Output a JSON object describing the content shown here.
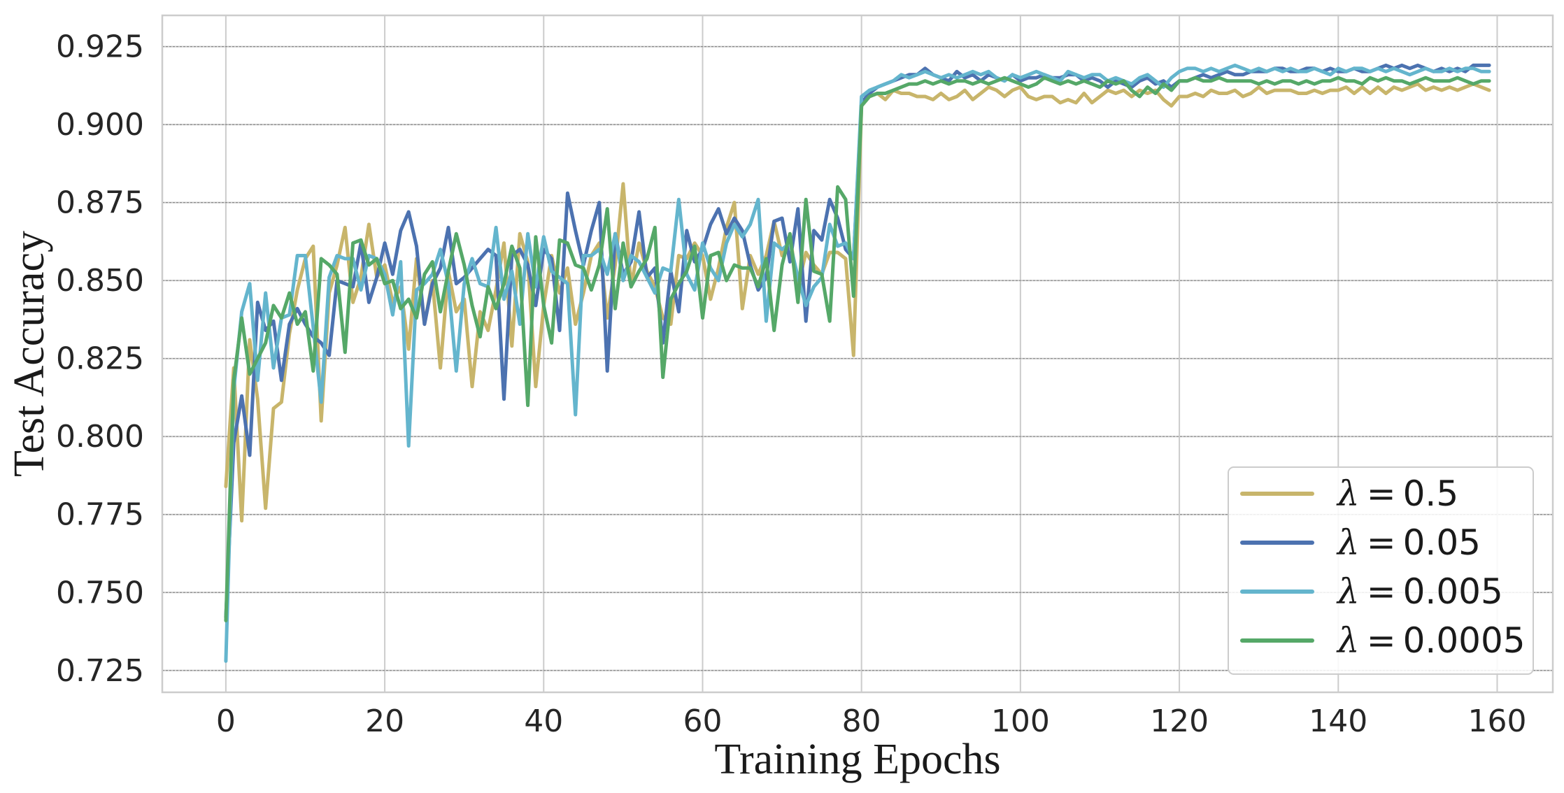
{
  "chart_data": {
    "type": "line",
    "xlabel": "Training Epochs",
    "ylabel": "Test Accuracy",
    "xlim": [
      -8,
      167
    ],
    "ylim": [
      0.718,
      0.935
    ],
    "xticks": [
      0,
      20,
      40,
      60,
      80,
      100,
      120,
      140,
      160
    ],
    "yticks": [
      0.725,
      0.75,
      0.775,
      0.8,
      0.825,
      0.85,
      0.875,
      0.9,
      0.925
    ],
    "ytick_labels": [
      "0.725",
      "0.750",
      "0.775",
      "0.800",
      "0.825",
      "0.850",
      "0.875",
      "0.900",
      "0.925"
    ],
    "grid": true,
    "legend_position": "lower-right",
    "legend_symbol": "λ",
    "legend_equals": "=",
    "series": [
      {
        "name": "λ = 0.5",
        "value_label": "0.5",
        "color": "#c8b56b",
        "values": [
          0.784,
          0.822,
          0.773,
          0.831,
          0.812,
          0.777,
          0.809,
          0.811,
          0.833,
          0.847,
          0.857,
          0.861,
          0.805,
          0.846,
          0.855,
          0.867,
          0.843,
          0.851,
          0.868,
          0.851,
          0.855,
          0.843,
          0.848,
          0.828,
          0.857,
          0.836,
          0.85,
          0.822,
          0.853,
          0.84,
          0.844,
          0.816,
          0.84,
          0.834,
          0.847,
          0.862,
          0.829,
          0.865,
          0.856,
          0.816,
          0.842,
          0.858,
          0.846,
          0.854,
          0.836,
          0.846,
          0.858,
          0.862,
          0.838,
          0.855,
          0.881,
          0.848,
          0.862,
          0.853,
          0.848,
          0.838,
          0.836,
          0.858,
          0.857,
          0.862,
          0.858,
          0.844,
          0.854,
          0.867,
          0.875,
          0.841,
          0.858,
          0.852,
          0.858,
          0.869,
          0.858,
          0.864,
          0.848,
          0.859,
          0.855,
          0.852,
          0.859,
          0.859,
          0.857,
          0.826,
          0.906,
          0.909,
          0.91,
          0.908,
          0.911,
          0.91,
          0.91,
          0.909,
          0.909,
          0.908,
          0.91,
          0.908,
          0.909,
          0.911,
          0.908,
          0.91,
          0.912,
          0.911,
          0.909,
          0.911,
          0.912,
          0.909,
          0.908,
          0.909,
          0.909,
          0.907,
          0.908,
          0.907,
          0.91,
          0.907,
          0.909,
          0.911,
          0.91,
          0.911,
          0.909,
          0.911,
          0.91,
          0.911,
          0.908,
          0.906,
          0.909,
          0.909,
          0.91,
          0.909,
          0.911,
          0.91,
          0.91,
          0.911,
          0.909,
          0.91,
          0.912,
          0.91,
          0.911,
          0.911,
          0.911,
          0.91,
          0.91,
          0.911,
          0.91,
          0.911,
          0.911,
          0.912,
          0.91,
          0.912,
          0.91,
          0.912,
          0.91,
          0.912,
          0.911,
          0.912,
          0.913,
          0.911,
          0.912,
          0.911,
          0.912,
          0.911,
          0.912,
          0.913,
          0.912,
          0.911
        ]
      },
      {
        "name": "λ = 0.05",
        "value_label": "0.05",
        "color": "#4c72b0",
        "values": [
          0.742,
          0.798,
          0.813,
          0.794,
          0.843,
          0.834,
          0.837,
          0.818,
          0.836,
          0.841,
          0.836,
          0.832,
          0.83,
          0.826,
          0.85,
          0.849,
          0.848,
          0.862,
          0.843,
          0.851,
          0.862,
          0.852,
          0.866,
          0.872,
          0.861,
          0.836,
          0.849,
          0.854,
          0.867,
          0.849,
          0.851,
          0.854,
          0.857,
          0.86,
          0.858,
          0.812,
          0.858,
          0.86,
          0.855,
          0.842,
          0.86,
          0.857,
          0.834,
          0.878,
          0.866,
          0.855,
          0.866,
          0.875,
          0.821,
          0.865,
          0.852,
          0.856,
          0.872,
          0.851,
          0.854,
          0.83,
          0.853,
          0.84,
          0.866,
          0.856,
          0.86,
          0.868,
          0.873,
          0.865,
          0.87,
          0.866,
          0.855,
          0.847,
          0.851,
          0.869,
          0.87,
          0.856,
          0.873,
          0.837,
          0.866,
          0.863,
          0.876,
          0.87,
          0.86,
          0.857,
          0.907,
          0.91,
          0.912,
          0.913,
          0.914,
          0.915,
          0.916,
          0.916,
          0.918,
          0.916,
          0.915,
          0.914,
          0.917,
          0.915,
          0.916,
          0.914,
          0.916,
          0.915,
          0.914,
          0.916,
          0.914,
          0.915,
          0.915,
          0.916,
          0.915,
          0.915,
          0.916,
          0.916,
          0.914,
          0.915,
          0.914,
          0.912,
          0.914,
          0.913,
          0.912,
          0.914,
          0.915,
          0.913,
          0.914,
          0.912,
          0.914,
          0.914,
          0.915,
          0.916,
          0.915,
          0.916,
          0.917,
          0.916,
          0.916,
          0.917,
          0.917,
          0.917,
          0.918,
          0.918,
          0.917,
          0.917,
          0.918,
          0.918,
          0.917,
          0.918,
          0.917,
          0.917,
          0.918,
          0.917,
          0.917,
          0.918,
          0.919,
          0.918,
          0.919,
          0.918,
          0.919,
          0.918,
          0.917,
          0.918,
          0.917,
          0.918,
          0.917,
          0.919,
          0.919,
          0.919
        ]
      },
      {
        "name": "λ = 0.005",
        "value_label": "0.005",
        "color": "#64b5cd",
        "values": [
          0.728,
          0.815,
          0.84,
          0.849,
          0.818,
          0.846,
          0.822,
          0.838,
          0.839,
          0.858,
          0.858,
          0.835,
          0.811,
          0.851,
          0.858,
          0.857,
          0.857,
          0.847,
          0.858,
          0.857,
          0.852,
          0.839,
          0.856,
          0.797,
          0.847,
          0.849,
          0.852,
          0.86,
          0.849,
          0.821,
          0.849,
          0.857,
          0.849,
          0.848,
          0.867,
          0.844,
          0.853,
          0.836,
          0.865,
          0.848,
          0.864,
          0.853,
          0.851,
          0.849,
          0.807,
          0.858,
          0.858,
          0.86,
          0.852,
          0.865,
          0.85,
          0.858,
          0.856,
          0.851,
          0.846,
          0.854,
          0.853,
          0.876,
          0.852,
          0.847,
          0.862,
          0.854,
          0.85,
          0.862,
          0.868,
          0.864,
          0.868,
          0.876,
          0.837,
          0.862,
          0.86,
          0.862,
          0.851,
          0.842,
          0.848,
          0.851,
          0.868,
          0.861,
          0.862,
          0.857,
          0.909,
          0.911,
          0.912,
          0.913,
          0.914,
          0.916,
          0.915,
          0.916,
          0.917,
          0.916,
          0.915,
          0.916,
          0.915,
          0.916,
          0.917,
          0.916,
          0.917,
          0.915,
          0.914,
          0.916,
          0.915,
          0.916,
          0.917,
          0.916,
          0.915,
          0.914,
          0.917,
          0.916,
          0.915,
          0.916,
          0.916,
          0.914,
          0.915,
          0.914,
          0.913,
          0.915,
          0.916,
          0.914,
          0.912,
          0.915,
          0.917,
          0.918,
          0.918,
          0.917,
          0.918,
          0.917,
          0.918,
          0.919,
          0.918,
          0.917,
          0.918,
          0.917,
          0.918,
          0.917,
          0.918,
          0.917,
          0.917,
          0.918,
          0.917,
          0.916,
          0.918,
          0.917,
          0.918,
          0.918,
          0.917,
          0.918,
          0.917,
          0.918,
          0.917,
          0.916,
          0.917,
          0.918,
          0.917,
          0.917,
          0.918,
          0.917,
          0.918,
          0.918,
          0.917,
          0.917
        ]
      },
      {
        "name": "λ = 0.0005",
        "value_label": "0.0005",
        "color": "#55a868",
        "values": [
          0.741,
          0.818,
          0.838,
          0.82,
          0.825,
          0.83,
          0.842,
          0.838,
          0.846,
          0.836,
          0.84,
          0.821,
          0.857,
          0.855,
          0.852,
          0.827,
          0.862,
          0.863,
          0.855,
          0.857,
          0.849,
          0.85,
          0.841,
          0.844,
          0.838,
          0.852,
          0.856,
          0.84,
          0.853,
          0.865,
          0.855,
          0.842,
          0.832,
          0.848,
          0.841,
          0.849,
          0.861,
          0.854,
          0.81,
          0.864,
          0.842,
          0.83,
          0.863,
          0.862,
          0.855,
          0.854,
          0.847,
          0.855,
          0.873,
          0.841,
          0.862,
          0.848,
          0.853,
          0.857,
          0.867,
          0.819,
          0.844,
          0.849,
          0.853,
          0.861,
          0.838,
          0.858,
          0.859,
          0.85,
          0.855,
          0.854,
          0.854,
          0.848,
          0.857,
          0.834,
          0.855,
          0.865,
          0.843,
          0.876,
          0.853,
          0.852,
          0.837,
          0.88,
          0.876,
          0.845,
          0.906,
          0.909,
          0.91,
          0.91,
          0.911,
          0.912,
          0.913,
          0.913,
          0.914,
          0.913,
          0.914,
          0.913,
          0.914,
          0.914,
          0.913,
          0.914,
          0.913,
          0.914,
          0.915,
          0.914,
          0.913,
          0.912,
          0.913,
          0.915,
          0.914,
          0.913,
          0.914,
          0.913,
          0.914,
          0.913,
          0.912,
          0.914,
          0.913,
          0.914,
          0.911,
          0.909,
          0.912,
          0.91,
          0.913,
          0.911,
          0.914,
          0.914,
          0.915,
          0.914,
          0.914,
          0.915,
          0.914,
          0.914,
          0.914,
          0.914,
          0.913,
          0.914,
          0.913,
          0.914,
          0.914,
          0.913,
          0.914,
          0.913,
          0.914,
          0.914,
          0.915,
          0.914,
          0.914,
          0.913,
          0.915,
          0.914,
          0.915,
          0.914,
          0.914,
          0.913,
          0.914,
          0.915,
          0.914,
          0.914,
          0.914,
          0.915,
          0.914,
          0.913,
          0.914,
          0.914
        ]
      }
    ]
  }
}
